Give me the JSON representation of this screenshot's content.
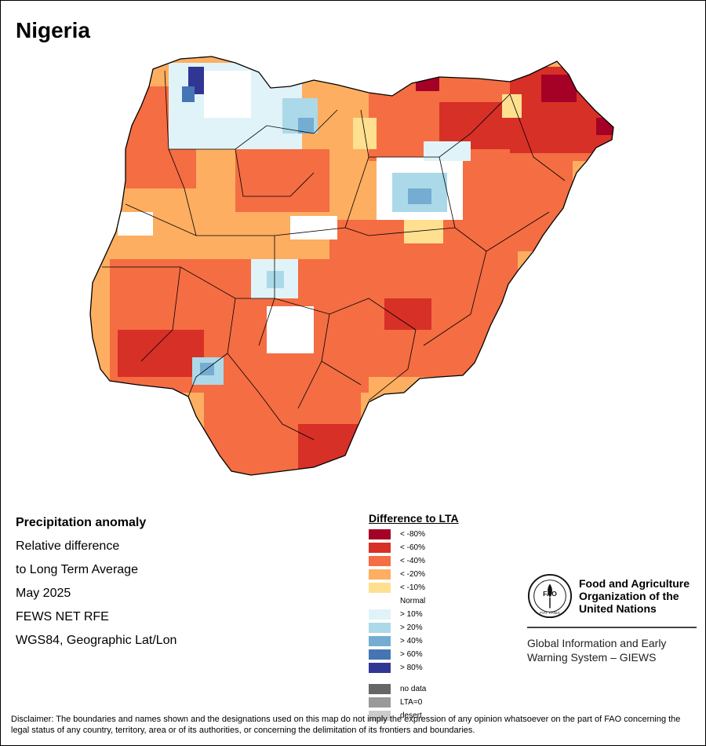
{
  "map": {
    "title": "Nigeria"
  },
  "info": {
    "title": "Precipitation anomaly",
    "lines": [
      "Relative difference",
      "to Long Term Average",
      "May 2025",
      "FEWS NET RFE",
      "WGS84, Geographic Lat/Lon"
    ]
  },
  "legend": {
    "title": "Difference to LTA",
    "classes": [
      {
        "label": "< -80%",
        "color": "#a50026"
      },
      {
        "label": "< -60%",
        "color": "#d73027"
      },
      {
        "label": "< -40%",
        "color": "#f46d43"
      },
      {
        "label": "< -20%",
        "color": "#fdae61"
      },
      {
        "label": "< -10%",
        "color": "#fee090"
      },
      {
        "label": "Normal",
        "color": "#ffffff"
      },
      {
        "label": "> 10%",
        "color": "#e0f3f8"
      },
      {
        "label": "> 20%",
        "color": "#abd9e9"
      },
      {
        "label": "> 40%",
        "color": "#74add1"
      },
      {
        "label": "> 60%",
        "color": "#4575b4"
      },
      {
        "label": "> 80%",
        "color": "#313695"
      }
    ],
    "special": [
      {
        "label": "no data",
        "color": "#666666"
      },
      {
        "label": "LTA=0",
        "color": "#999999"
      },
      {
        "label": "desert",
        "color": "#cccccc"
      }
    ]
  },
  "fao": {
    "name_lines": [
      "Food and Agriculture",
      "Organization of the",
      "United Nations"
    ],
    "giews_lines": [
      "Global Information and Early",
      "Warning System – GIEWS"
    ],
    "logo_text": "FAO",
    "logo_motto": "FIAT PANIS"
  },
  "disclaimer": "Disclaimer: The boundaries and names shown and the designations used on this map do not imply the expression of any opinion whatsoever on the part of FAO concerning the legal status of any country, territory, area or of its authorities, or concerning the delimitation of its frontiers and boundaries."
}
